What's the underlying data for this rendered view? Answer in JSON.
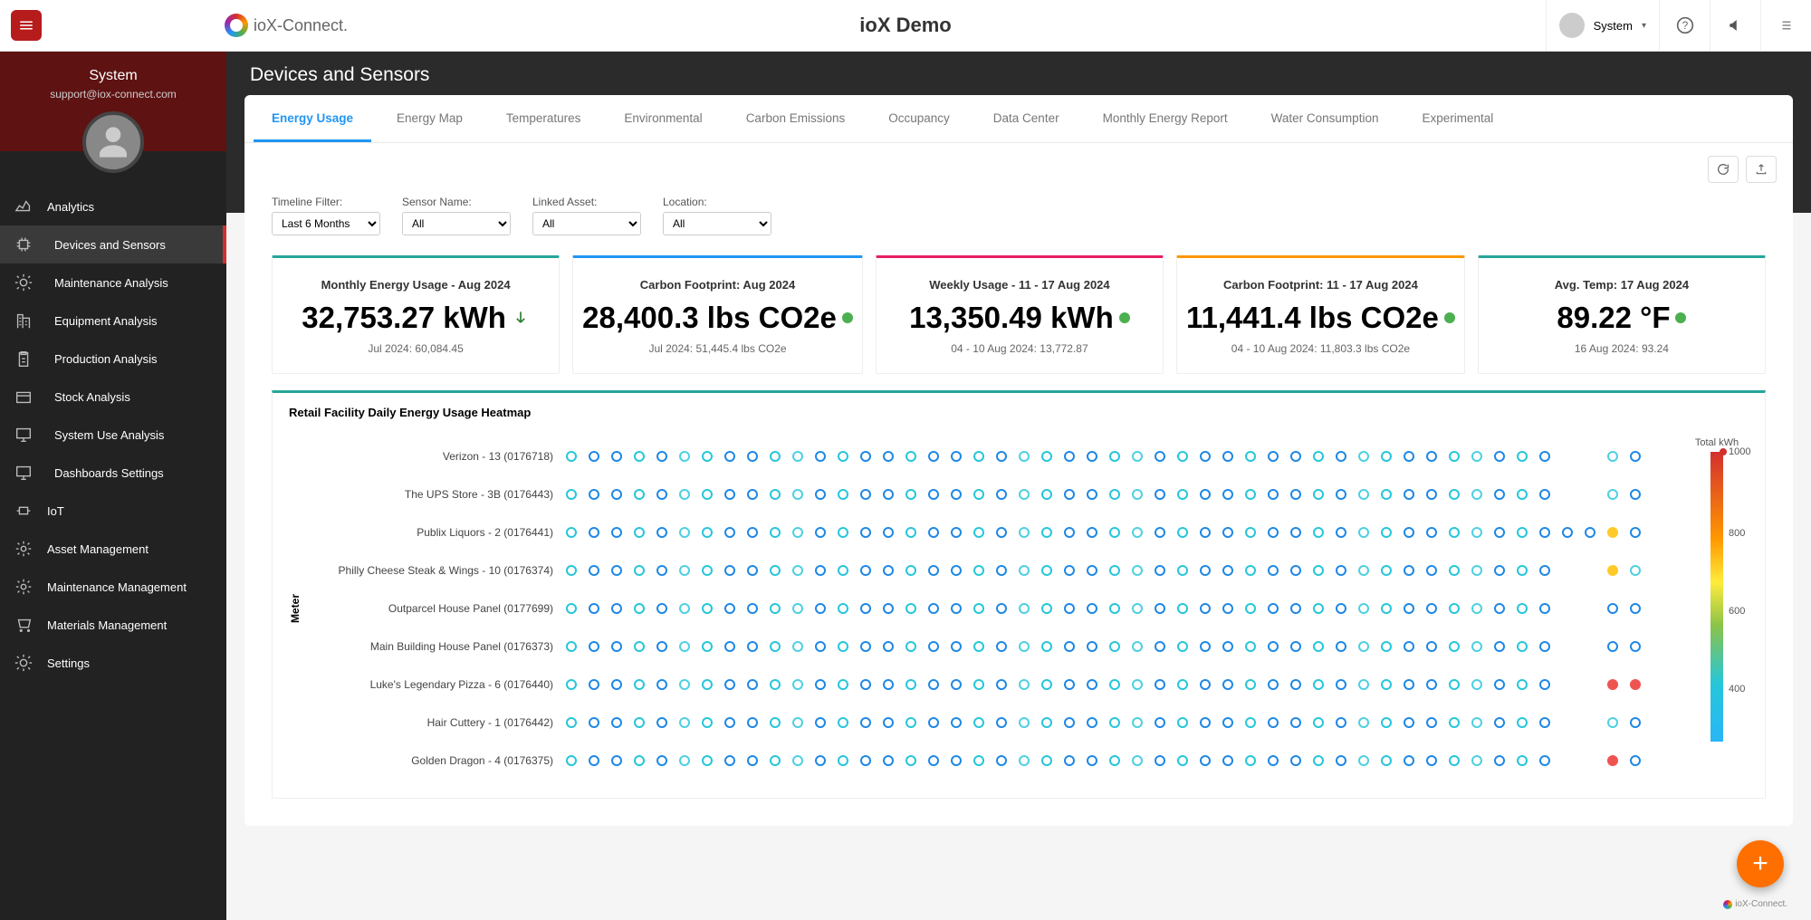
{
  "app": {
    "brand": "ioX-Connect.",
    "title": "ioX Demo",
    "user": "System"
  },
  "sidebar": {
    "user": {
      "name": "System",
      "email": "support@iox-connect.com"
    },
    "items": [
      {
        "label": "Analytics",
        "icon": "chart",
        "sub": false
      },
      {
        "label": "Devices and Sensors",
        "icon": "chip",
        "sub": true,
        "active": true
      },
      {
        "label": "Maintenance Analysis",
        "icon": "gear",
        "sub": true
      },
      {
        "label": "Equipment Analysis",
        "icon": "building",
        "sub": true
      },
      {
        "label": "Production Analysis",
        "icon": "clipboard",
        "sub": true
      },
      {
        "label": "Stock Analysis",
        "icon": "wallet",
        "sub": true
      },
      {
        "label": "System Use Analysis",
        "icon": "monitor",
        "sub": true
      },
      {
        "label": "Dashboards Settings",
        "icon": "monitor",
        "sub": true
      },
      {
        "label": "IoT",
        "icon": "iot",
        "sub": false
      },
      {
        "label": "Asset Management",
        "icon": "gear2",
        "sub": false
      },
      {
        "label": "Maintenance Management",
        "icon": "gear2",
        "sub": false
      },
      {
        "label": "Materials Management",
        "icon": "cart",
        "sub": false
      },
      {
        "label": "Settings",
        "icon": "gear",
        "sub": false
      }
    ]
  },
  "page": {
    "title": "Devices and Sensors"
  },
  "tabs": [
    "Energy Usage",
    "Energy Map",
    "Temperatures",
    "Environmental",
    "Carbon Emissions",
    "Occupancy",
    "Data Center",
    "Monthly Energy Report",
    "Water Consumption",
    "Experimental"
  ],
  "activeTab": 0,
  "filters": {
    "timeline": {
      "label": "Timeline Filter:",
      "value": "Last 6 Months"
    },
    "sensor": {
      "label": "Sensor Name:",
      "value": "All"
    },
    "asset": {
      "label": "Linked Asset:",
      "value": "All"
    },
    "location": {
      "label": "Location:",
      "value": "All"
    }
  },
  "kpis": [
    {
      "label": "Monthly Energy Usage - Aug 2024",
      "value": "32,753.27 kWh",
      "sub": "Jul 2024: 60,084.45",
      "bar": "#26a69a",
      "indicator": "arrow-down",
      "ind_color": "#2e7d32"
    },
    {
      "label": "Carbon Footprint: Aug 2024",
      "value": "28,400.3 lbs CO2e",
      "sub": "Jul 2024: 51,445.4 lbs CO2e",
      "bar": "#2196f3",
      "indicator": "dot",
      "ind_color": "#4caf50"
    },
    {
      "label": "Weekly Usage - 11 - 17 Aug 2024",
      "value": "13,350.49 kWh",
      "sub": "04 - 10 Aug 2024: 13,772.87",
      "bar": "#e91e63",
      "indicator": "dot",
      "ind_color": "#4caf50"
    },
    {
      "label": "Carbon Footprint: 11 - 17 Aug 2024",
      "value": "11,441.4 lbs CO2e",
      "sub": "04 - 10 Aug 2024: 11,803.3 lbs CO2e",
      "bar": "#ff9800",
      "indicator": "dot",
      "ind_color": "#4caf50"
    },
    {
      "label": "Avg. Temp: 17 Aug 2024",
      "value": "89.22 °F",
      "sub": "16 Aug 2024: 93.24",
      "bar": "#26a69a",
      "indicator": "dot",
      "ind_color": "#4caf50"
    }
  ],
  "heatmap": {
    "title": "Retail Facility Daily Energy Usage Heatmap",
    "ylabel": "Meter",
    "legend_title": "Total kWh",
    "legend_ticks": [
      "1000",
      "800",
      "600",
      "400"
    ],
    "rows": [
      "Verizon - 13 (0176718)",
      "The UPS Store - 3B (0176443)",
      "Publix Liquors - 2 (0176441)",
      "Philly Cheese Steak & Wings - 10 (0176374)",
      "Outparcel House Panel (0177699)",
      "Main Building House Panel (0176373)",
      "Luke's Legendary Pizza - 6 (0176440)",
      "Hair Cuttery - 1 (0176442)",
      "Golden Dragon - 4 (0176375)"
    ],
    "cols": 48,
    "colors": {
      "lowA": "#1e88e5",
      "lowB": "#26c6da",
      "teal": "#4dd0e1",
      "mid": "#9ccc65",
      "warn": "#ffca28",
      "high": "#ef5350"
    },
    "special": {
      "0": {
        "46": "teal"
      },
      "1": {
        "46": "teal"
      },
      "2": {
        "44": "lowA",
        "45": "lowA",
        "46": "warn"
      },
      "3": {
        "46": "warn",
        "47": "teal"
      },
      "4": {
        "46": "lowA",
        "47": "lowA"
      },
      "6": {
        "46": "high",
        "47": "high"
      },
      "7": {
        "46": "teal"
      },
      "8": {
        "46": "high"
      }
    }
  }
}
